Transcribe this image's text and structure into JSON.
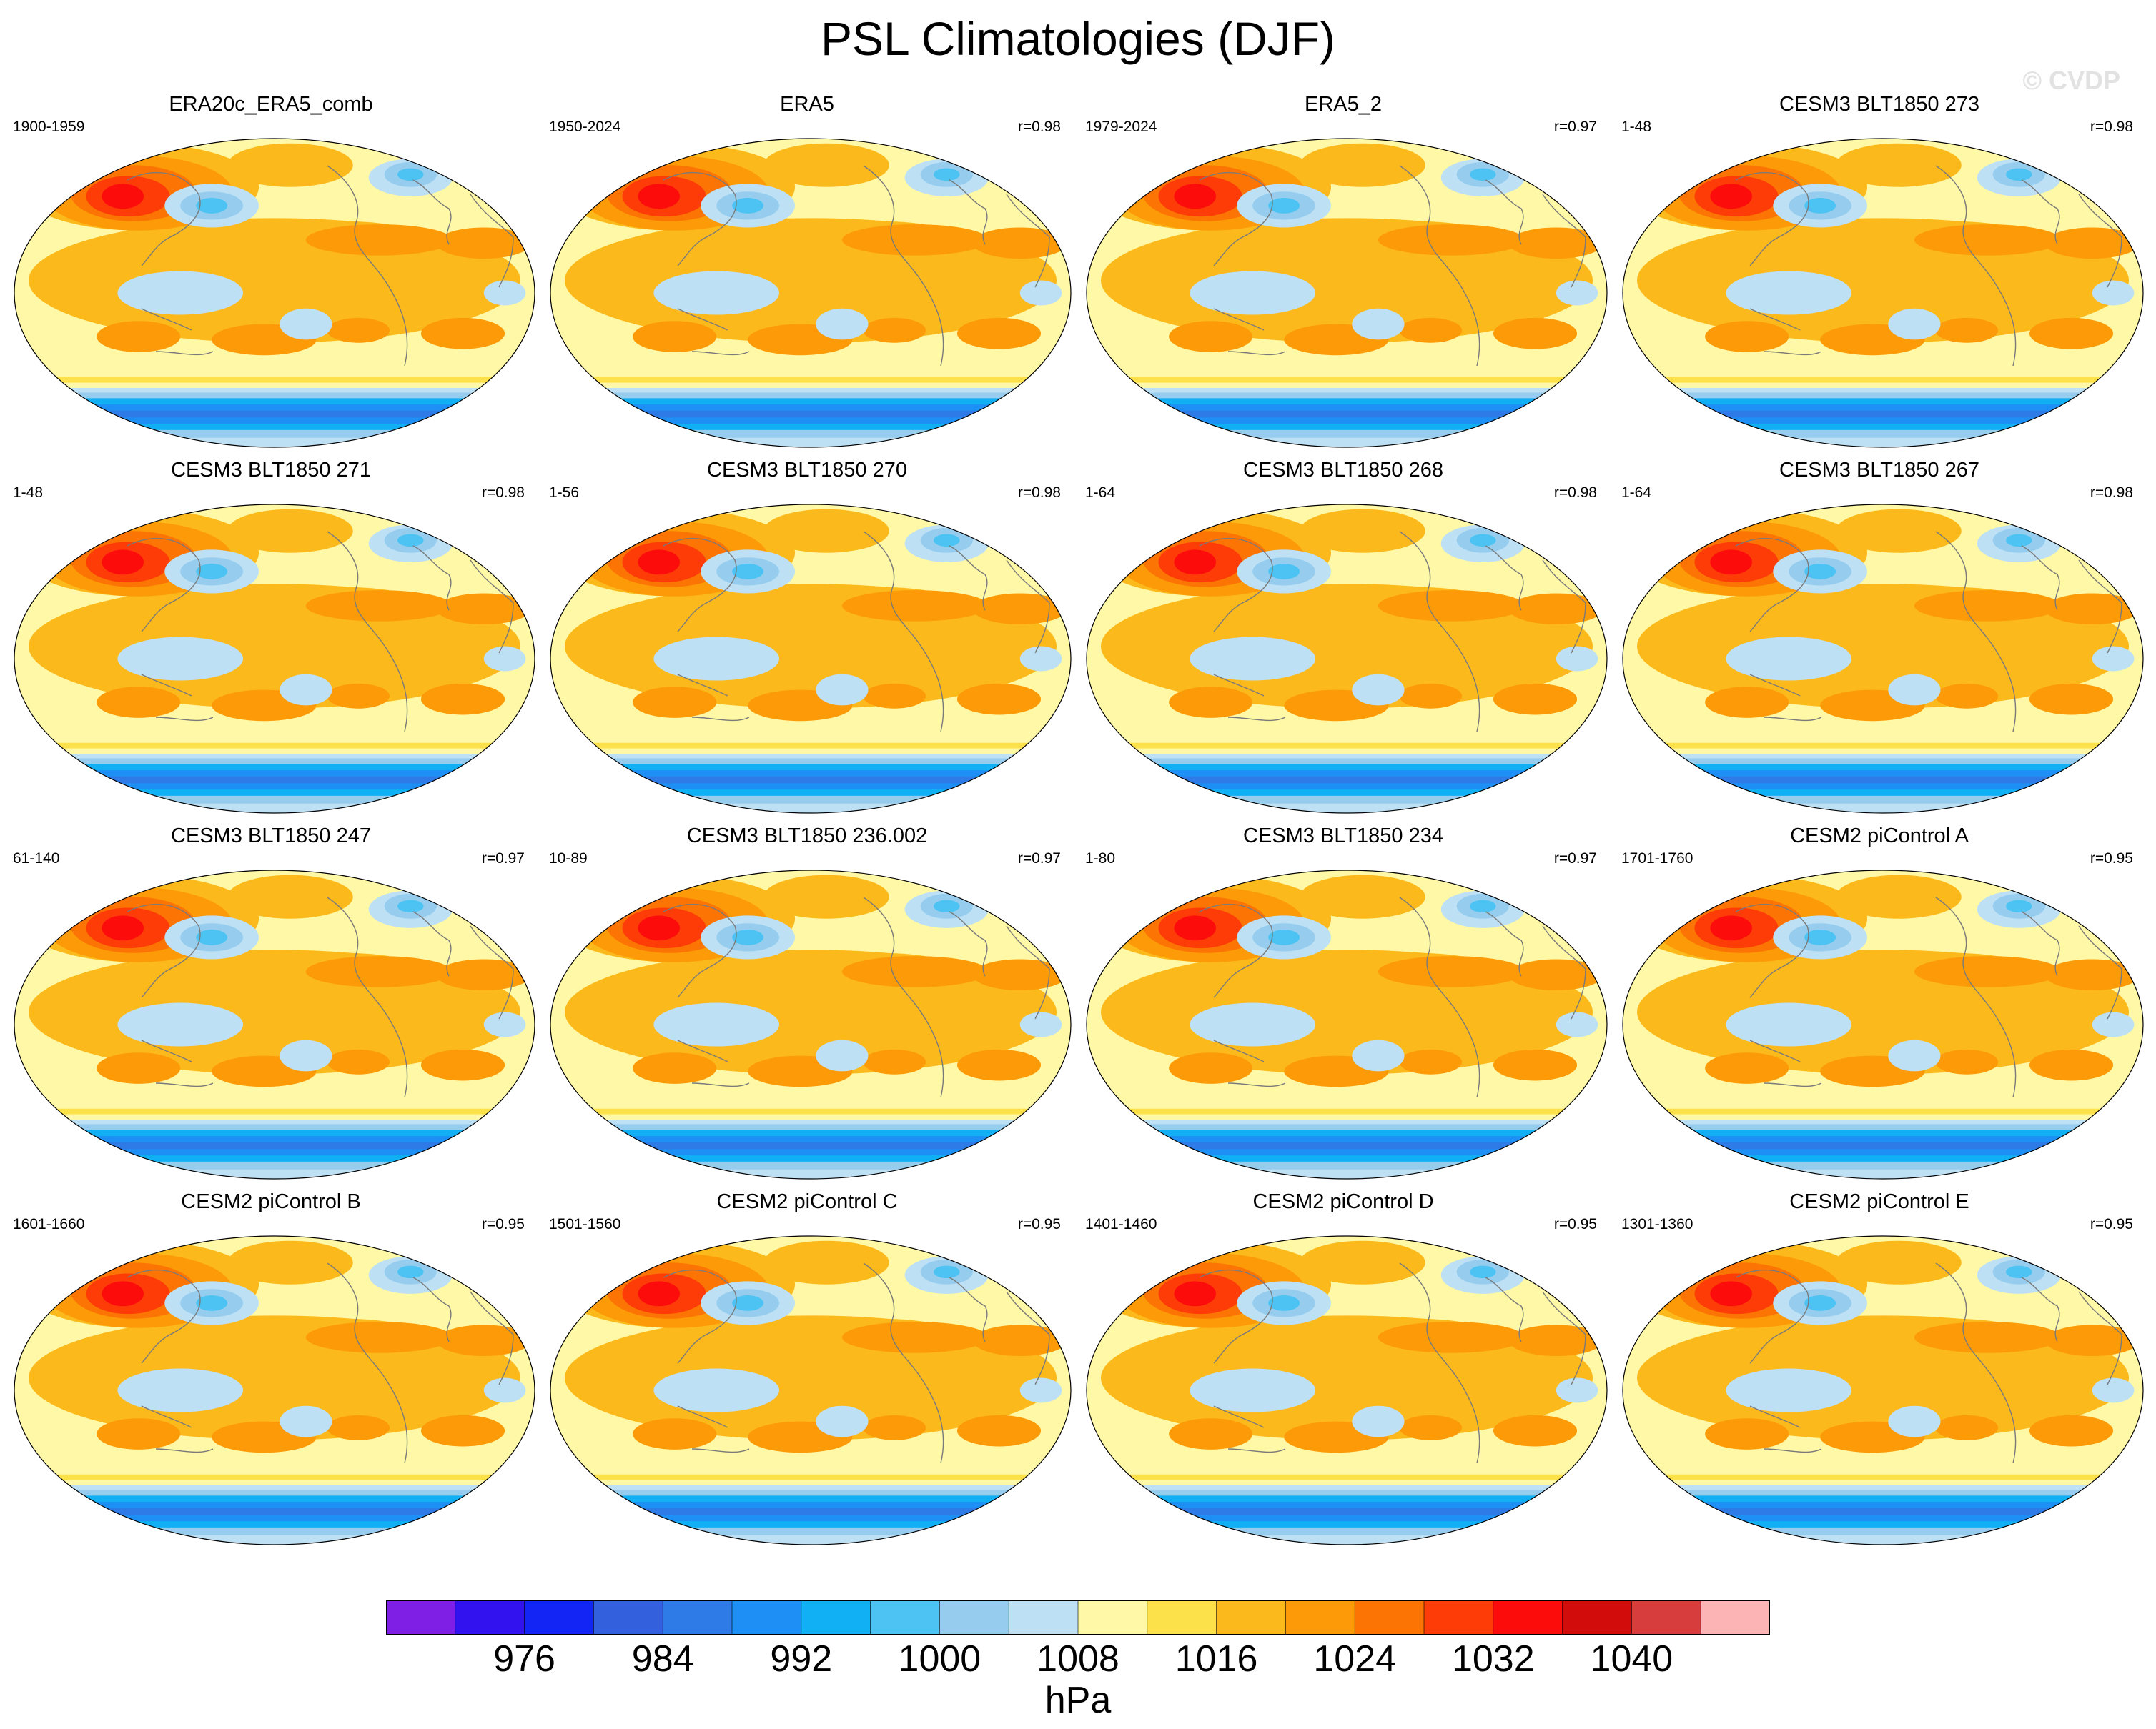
{
  "chart_data": {
    "type": "map-panels",
    "title": "PSL Climatologies (DJF)",
    "watermark": "© CVDP",
    "units": "hPa",
    "panels": [
      {
        "title": "ERA20c_ERA5_comb",
        "period": "1900-1959",
        "r": ""
      },
      {
        "title": "ERA5",
        "period": "1950-2024",
        "r": "r=0.98"
      },
      {
        "title": "ERA5_2",
        "period": "1979-2024",
        "r": "r=0.97"
      },
      {
        "title": "CESM3 BLT1850 273",
        "period": "1-48",
        "r": "r=0.98"
      },
      {
        "title": "CESM3 BLT1850 271",
        "period": "1-48",
        "r": "r=0.98"
      },
      {
        "title": "CESM3 BLT1850 270",
        "period": "1-56",
        "r": "r=0.98"
      },
      {
        "title": "CESM3 BLT1850 268",
        "period": "1-64",
        "r": "r=0.98"
      },
      {
        "title": "CESM3 BLT1850 267",
        "period": "1-64",
        "r": "r=0.98"
      },
      {
        "title": "CESM3 BLT1850 247",
        "period": "61-140",
        "r": "r=0.97"
      },
      {
        "title": "CESM3 BLT1850 236.002",
        "period": "10-89",
        "r": "r=0.97"
      },
      {
        "title": "CESM3 BLT1850 234",
        "period": "1-80",
        "r": "r=0.97"
      },
      {
        "title": "CESM2 piControl A",
        "period": "1701-1760",
        "r": "r=0.95"
      },
      {
        "title": "CESM2 piControl B",
        "period": "1601-1660",
        "r": "r=0.95"
      },
      {
        "title": "CESM2 piControl C",
        "period": "1501-1560",
        "r": "r=0.95"
      },
      {
        "title": "CESM2 piControl D",
        "period": "1401-1460",
        "r": "r=0.95"
      },
      {
        "title": "CESM2 piControl E",
        "period": "1301-1360",
        "r": "r=0.95"
      }
    ],
    "colorbar": {
      "colors": [
        "#7f1fe6",
        "#3213f0",
        "#1325f5",
        "#3360dd",
        "#2e7ae6",
        "#1e90f5",
        "#11b0f5",
        "#4cc3f2",
        "#96cdee",
        "#bde0f5",
        "#fff8a6",
        "#fde14a",
        "#fcb91c",
        "#fc9a07",
        "#fc7504",
        "#fd3c07",
        "#fc0d0c",
        "#d20b0b",
        "#d83d3d",
        "#fdb4b4"
      ],
      "ticks": [
        "976",
        "984",
        "992",
        "1000",
        "1008",
        "1016",
        "1024",
        "1032",
        "1040"
      ]
    }
  }
}
